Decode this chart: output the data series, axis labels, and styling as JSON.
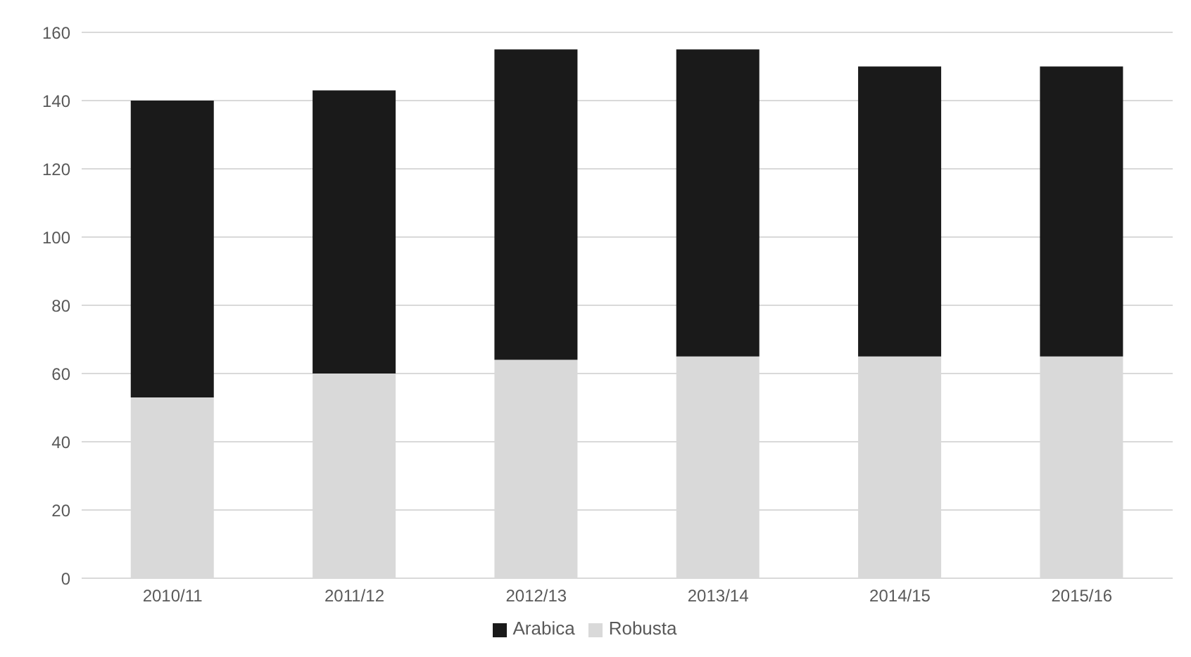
{
  "chart_data": {
    "type": "bar",
    "stacked": true,
    "categories": [
      "2010/11",
      "2011/12",
      "2012/13",
      "2013/14",
      "2014/15",
      "2015/16"
    ],
    "series": [
      {
        "name": "Robusta",
        "color": "#d9d9d9",
        "values": [
          53,
          60,
          64,
          65,
          65,
          65
        ]
      },
      {
        "name": "Arabica",
        "color": "#1a1a1a",
        "values": [
          87,
          83,
          91,
          90,
          85,
          85
        ]
      }
    ],
    "ylim": [
      0,
      160
    ],
    "yticks": [
      0,
      20,
      40,
      60,
      80,
      100,
      120,
      140,
      160
    ],
    "grid": "y",
    "legend": "bottom"
  }
}
